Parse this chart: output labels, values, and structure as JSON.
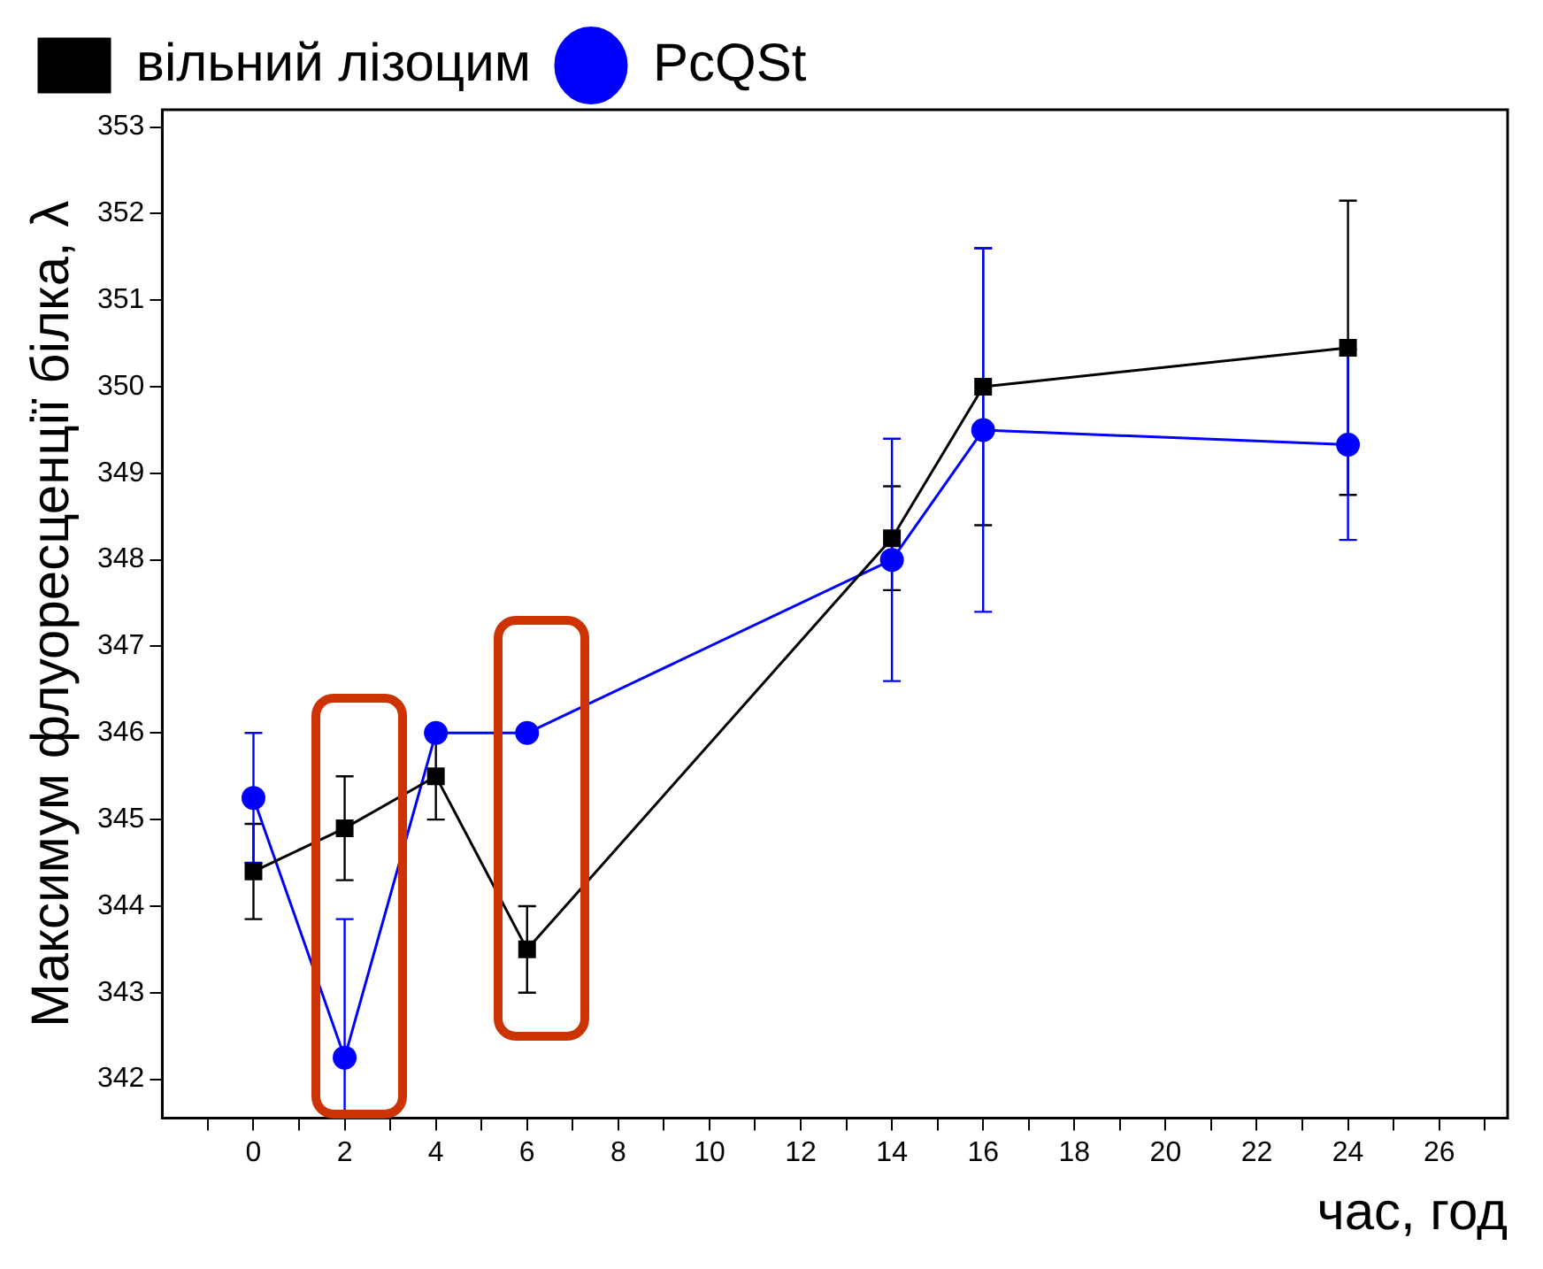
{
  "chart_data": {
    "type": "line",
    "xlabel": "час, год",
    "ylabel": "Максимум флуоресценції білка, λ",
    "x": [
      0,
      2,
      4,
      6,
      14,
      16,
      24
    ],
    "series": [
      {
        "name": "вільний лізоцим",
        "color": "#000000",
        "marker": "square",
        "values": [
          344.4,
          344.9,
          345.5,
          343.5,
          348.25,
          350.0,
          350.45
        ],
        "errors": [
          0.55,
          0.6,
          0.5,
          0.5,
          0.6,
          1.6,
          1.7
        ]
      },
      {
        "name": "PcQSt",
        "color": "#0000ff",
        "marker": "circle",
        "values": [
          345.25,
          342.25,
          346.0,
          346.0,
          348.0,
          349.5,
          349.33
        ],
        "errors": [
          0.75,
          [
            341.6,
            343.85
          ],
          null,
          null,
          1.4,
          2.1,
          1.1
        ]
      }
    ],
    "xlim": [
      -2,
      27.5
    ],
    "xticks": [
      {
        "value": -1,
        "label": null
      },
      0,
      {
        "value": 1,
        "label": null
      },
      2,
      {
        "value": 3,
        "label": null
      },
      4,
      {
        "value": 5,
        "label": null
      },
      6,
      {
        "value": 7,
        "label": null
      },
      8,
      {
        "value": 9,
        "label": null
      },
      10,
      {
        "value": 11,
        "label": null
      },
      12,
      {
        "value": 13,
        "label": null
      },
      14,
      {
        "value": 15,
        "label": null
      },
      16,
      {
        "value": 17,
        "label": null
      },
      18,
      {
        "value": 19,
        "label": null
      },
      20,
      {
        "value": 21,
        "label": null
      },
      22,
      {
        "value": 23,
        "label": null
      },
      24,
      {
        "value": 25,
        "label": null
      },
      26,
      {
        "value": 27,
        "label": null
      }
    ],
    "ylim": [
      341.55,
      353.2
    ],
    "yticks": [
      342,
      343,
      344,
      345,
      346,
      347,
      348,
      349,
      350,
      351,
      352,
      353
    ],
    "grid": false,
    "legend": "top left",
    "line_style": "solid"
  }
}
